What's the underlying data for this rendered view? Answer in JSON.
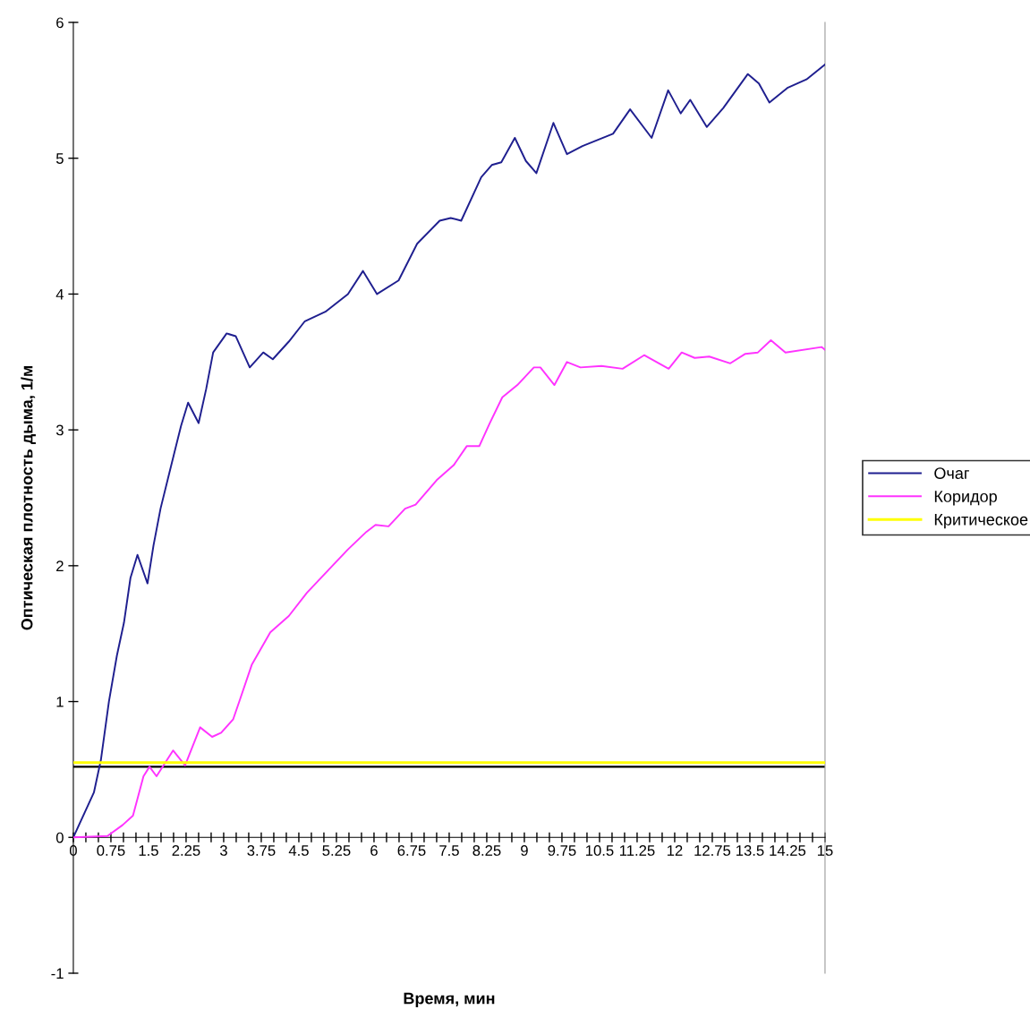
{
  "chart_data": {
    "type": "line",
    "xlabel": "Время, мин",
    "ylabel": "Оптическая плотность дыма, 1/м",
    "xlim": [
      0,
      15
    ],
    "ylim": [
      -1,
      6
    ],
    "yticks": [
      -1,
      0,
      1,
      2,
      3,
      4,
      5,
      6
    ],
    "xticks": [
      0,
      {
        "value": 0.25,
        "label": null
      },
      {
        "value": 0.5,
        "label": null
      },
      0.75,
      {
        "value": 1,
        "label": null
      },
      {
        "value": 1.25,
        "label": null
      },
      1.5,
      {
        "value": 1.75,
        "label": null
      },
      {
        "value": 2,
        "label": null
      },
      2.25,
      {
        "value": 2.5,
        "label": null
      },
      {
        "value": 2.75,
        "label": null
      },
      3,
      {
        "value": 3.25,
        "label": null
      },
      {
        "value": 3.5,
        "label": null
      },
      3.75,
      {
        "value": 4,
        "label": null
      },
      {
        "value": 4.25,
        "label": null
      },
      4.5,
      {
        "value": 4.75,
        "label": null
      },
      {
        "value": 5,
        "label": null
      },
      5.25,
      {
        "value": 5.5,
        "label": null
      },
      {
        "value": 5.75,
        "label": null
      },
      6,
      {
        "value": 6.25,
        "label": null
      },
      {
        "value": 6.5,
        "label": null
      },
      6.75,
      {
        "value": 7,
        "label": null
      },
      {
        "value": 7.25,
        "label": null
      },
      7.5,
      {
        "value": 7.75,
        "label": null
      },
      {
        "value": 8,
        "label": null
      },
      8.25,
      {
        "value": 8.5,
        "label": null
      },
      {
        "value": 8.75,
        "label": null
      },
      9,
      {
        "value": 9.25,
        "label": null
      },
      {
        "value": 9.5,
        "label": null
      },
      9.75,
      {
        "value": 10,
        "label": null
      },
      {
        "value": 10.25,
        "label": null
      },
      10.5,
      {
        "value": 10.75,
        "label": null
      },
      {
        "value": 11,
        "label": null
      },
      11.25,
      {
        "value": 11.5,
        "label": null
      },
      {
        "value": 11.75,
        "label": null
      },
      12,
      {
        "value": 12.25,
        "label": null
      },
      {
        "value": 12.5,
        "label": null
      },
      12.75,
      {
        "value": 13,
        "label": null
      },
      {
        "value": 13.25,
        "label": null
      },
      13.5,
      {
        "value": 13.75,
        "label": null
      },
      {
        "value": 14,
        "label": null
      },
      14.25,
      {
        "value": 14.5,
        "label": null
      },
      {
        "value": 14.75,
        "label": null
      },
      15
    ],
    "series": [
      {
        "name": "Очаг",
        "color": "#1f1f8f",
        "x": [
          0,
          0.41,
          0.55,
          0.71,
          0.87,
          1.01,
          1.14,
          1.28,
          1.48,
          1.6,
          1.74,
          1.92,
          2.15,
          2.29,
          2.5,
          2.65,
          2.79,
          3.06,
          3.24,
          3.52,
          3.79,
          3.98,
          4.3,
          4.62,
          5.03,
          5.48,
          5.78,
          6.06,
          6.49,
          6.86,
          7.31,
          7.53,
          7.74,
          8.14,
          8.35,
          8.54,
          8.81,
          9.03,
          9.24,
          9.58,
          9.85,
          10.16,
          10.77,
          11.11,
          11.54,
          11.87,
          12.12,
          12.31,
          12.64,
          12.97,
          13.46,
          13.68,
          13.89,
          14.26,
          14.63,
          15
        ],
        "values": [
          0,
          0.33,
          0.57,
          1.0,
          1.34,
          1.58,
          1.91,
          2.08,
          1.87,
          2.15,
          2.42,
          2.69,
          3.03,
          3.2,
          3.05,
          3.3,
          3.57,
          3.71,
          3.69,
          3.46,
          3.57,
          3.52,
          3.65,
          3.8,
          3.87,
          4.0,
          4.17,
          4.0,
          4.1,
          4.37,
          4.54,
          4.56,
          4.54,
          4.86,
          4.95,
          4.97,
          5.15,
          4.98,
          4.89,
          5.26,
          5.03,
          5.09,
          5.18,
          5.36,
          5.15,
          5.5,
          5.33,
          5.43,
          5.23,
          5.37,
          5.62,
          5.55,
          5.41,
          5.52,
          5.58,
          5.69
        ]
      },
      {
        "name": "Коридор",
        "color": "#ff33ff",
        "x": [
          0,
          0.68,
          0.98,
          1.19,
          1.4,
          1.52,
          1.66,
          1.99,
          2.23,
          2.53,
          2.77,
          2.95,
          3.19,
          3.33,
          3.56,
          3.93,
          4.3,
          4.66,
          5.12,
          5.48,
          5.85,
          6.03,
          6.29,
          6.62,
          6.83,
          7.25,
          7.59,
          7.85,
          8.1,
          8.31,
          8.56,
          8.86,
          9.19,
          9.32,
          9.6,
          9.85,
          10.12,
          10.54,
          10.96,
          11.39,
          11.88,
          12.14,
          12.4,
          12.69,
          13.11,
          13.41,
          13.66,
          13.92,
          14.21,
          14.93,
          15
        ],
        "values": [
          0,
          0.01,
          0.09,
          0.16,
          0.45,
          0.52,
          0.45,
          0.64,
          0.53,
          0.81,
          0.74,
          0.77,
          0.87,
          1.02,
          1.27,
          1.51,
          1.63,
          1.8,
          1.98,
          2.12,
          2.25,
          2.3,
          2.29,
          2.42,
          2.45,
          2.63,
          2.74,
          2.88,
          2.88,
          3.05,
          3.24,
          3.33,
          3.46,
          3.46,
          3.33,
          3.5,
          3.46,
          3.47,
          3.45,
          3.55,
          3.45,
          3.57,
          3.53,
          3.54,
          3.49,
          3.56,
          3.57,
          3.66,
          3.57,
          3.61,
          3.59
        ]
      },
      {
        "name": "Критическое",
        "color": "#ffff00",
        "x": [
          0,
          15
        ],
        "values": [
          0.55,
          0.55
        ]
      }
    ],
    "ref_lines": [
      {
        "axis": "y",
        "value": 0.52,
        "color": "#000000",
        "line_style": "solid"
      }
    ],
    "legend": "right",
    "grid": false,
    "marker": "none",
    "line_style": "solid"
  }
}
